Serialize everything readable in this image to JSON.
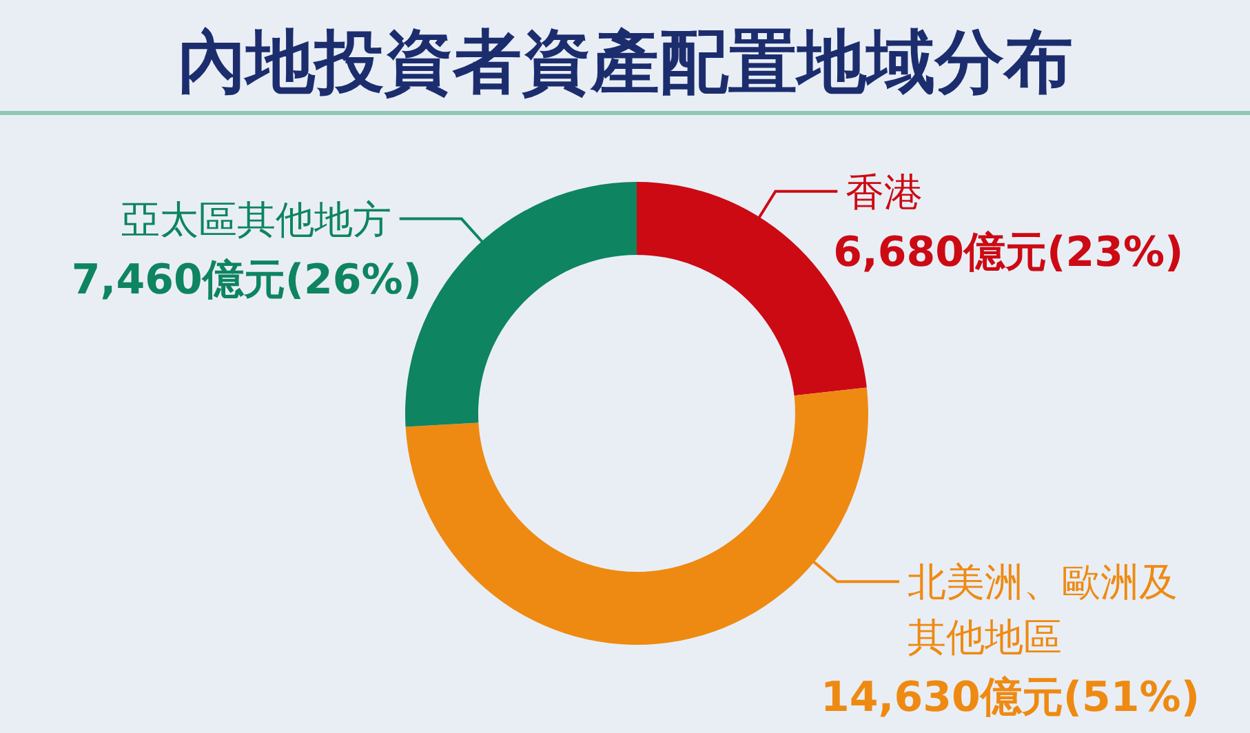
{
  "chart_data": {
    "type": "donut",
    "title": "內地投資者資產配置地域分布",
    "categories": [
      "香港",
      "北美洲、歐洲及其他地區",
      "亞太區其他地方"
    ],
    "values": [
      6680,
      14630,
      7460
    ],
    "colors": [
      "#cc0a14",
      "#ee8a12",
      "#0e8460"
    ],
    "value_labels": [
      "6,680億元(23%)",
      "14,630億元(51%)",
      "7,460億元(26%)"
    ]
  }
}
